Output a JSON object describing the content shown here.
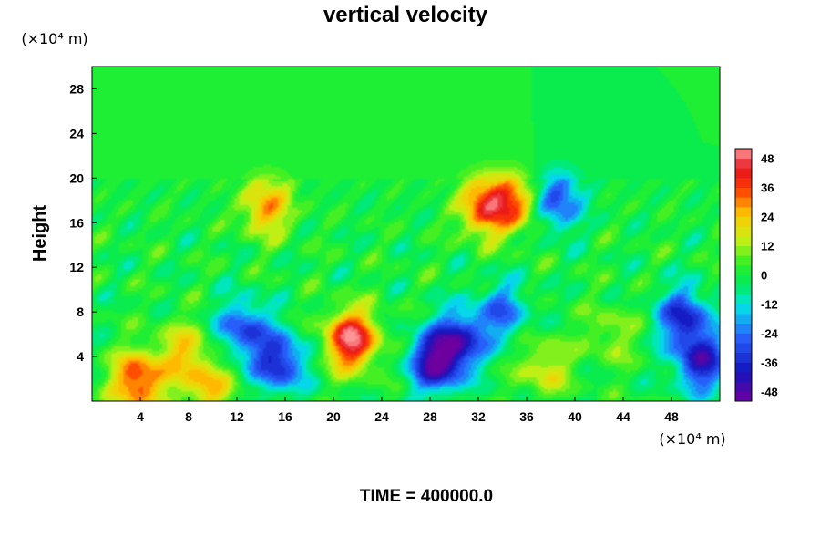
{
  "chart_data": {
    "type": "heatmap",
    "title": "vertical velocity",
    "ylabel": "Height",
    "xunit": "(×10⁴ m)",
    "yunit": "(×10⁴ m)",
    "xlim": [
      0,
      52
    ],
    "ylim": [
      0,
      30
    ],
    "x_ticks": [
      4,
      8,
      12,
      16,
      20,
      24,
      28,
      32,
      36,
      40,
      44,
      48
    ],
    "x_tick_labels": [
      "4",
      "8",
      "12",
      "16",
      "20",
      "24",
      "28",
      "32",
      "36",
      "40",
      "44",
      "48"
    ],
    "y_ticks": [
      4,
      8,
      12,
      16,
      20,
      24,
      28
    ],
    "y_tick_labels": [
      "4",
      "8",
      "12",
      "16",
      "20",
      "24",
      "28"
    ],
    "colorbar": {
      "range": [
        -52,
        52
      ],
      "ticks": [
        48,
        36,
        24,
        12,
        0,
        -12,
        -24,
        -36,
        -48
      ],
      "tick_labels": [
        "48",
        "36",
        "24",
        "12",
        "0",
        "-12",
        "-24",
        "-36",
        "-48"
      ]
    },
    "background_value": 0,
    "features": [
      {
        "x": 21.5,
        "y": 5.5,
        "peak": 50
      },
      {
        "x": 3.8,
        "y": 1.8,
        "peak": 40
      },
      {
        "x": 7.5,
        "y": 4.5,
        "peak": 20
      },
      {
        "x": 9.5,
        "y": 1.2,
        "peak": 24
      },
      {
        "x": 14.5,
        "y": 17.5,
        "peak": 28
      },
      {
        "x": 32.5,
        "y": 17.5,
        "peak": 36
      },
      {
        "x": 35,
        "y": 17.8,
        "peak": 30
      },
      {
        "x": 37.5,
        "y": 3,
        "peak": 18
      },
      {
        "x": 28.5,
        "y": 3.5,
        "peak": -48
      },
      {
        "x": 30.5,
        "y": 5.5,
        "peak": -36
      },
      {
        "x": 15.5,
        "y": 3.5,
        "peak": -38
      },
      {
        "x": 12.5,
        "y": 6.5,
        "peak": -30
      },
      {
        "x": 50.5,
        "y": 3.5,
        "peak": -40
      },
      {
        "x": 49,
        "y": 7.5,
        "peak": -36
      },
      {
        "x": 38.5,
        "y": 18,
        "peak": -30
      },
      {
        "x": 43,
        "y": 6,
        "peak": 12
      },
      {
        "x": 34,
        "y": 8,
        "peak": -24
      }
    ],
    "annotation": "TIME = 400000.0"
  }
}
